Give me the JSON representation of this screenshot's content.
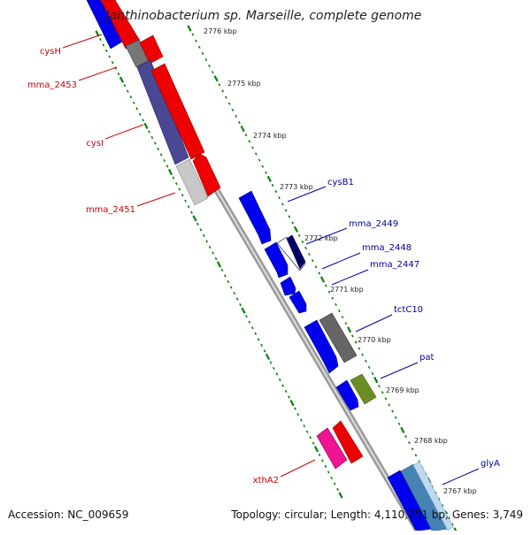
{
  "title": "Janthinobacterium sp. Marseille, complete genome",
  "footer": {
    "accession": "Accession: NC_009659",
    "stats": "Topology: circular; Length: 4,110,251 bp; Genes: 3,749"
  },
  "ticks": [
    {
      "label": "2776 kbp"
    },
    {
      "label": "2775 kbp"
    },
    {
      "label": "2774 kbp"
    },
    {
      "label": "2773 kbp"
    },
    {
      "label": "2772 kbp"
    },
    {
      "label": "2771 kbp"
    },
    {
      "label": "2770 kbp"
    },
    {
      "label": "2769 kbp"
    },
    {
      "label": "2768 kbp"
    },
    {
      "label": "2767 kbp"
    }
  ],
  "gene_labels": {
    "left": [
      "cysH",
      "mma_2453",
      "cysI",
      "mma_2451",
      "xthA2"
    ],
    "right": [
      "cysB1",
      "mma_2449",
      "mma_2448",
      "mma_2447",
      "tctC10",
      "pat",
      "glyA"
    ]
  },
  "colors": {
    "cds_blue": "#0000ee",
    "cds_red": "#ee0000",
    "gray": "#666666",
    "slate": "#4a4894",
    "light_gray": "#c8c8c8",
    "navy": "#000066",
    "olive": "#6b8e23",
    "pink": "#ee1493",
    "steel": "#4682b4",
    "tick_green": "#008000",
    "left_label": "#cc0000",
    "right_label": "#000099",
    "backbone": "#888888"
  }
}
